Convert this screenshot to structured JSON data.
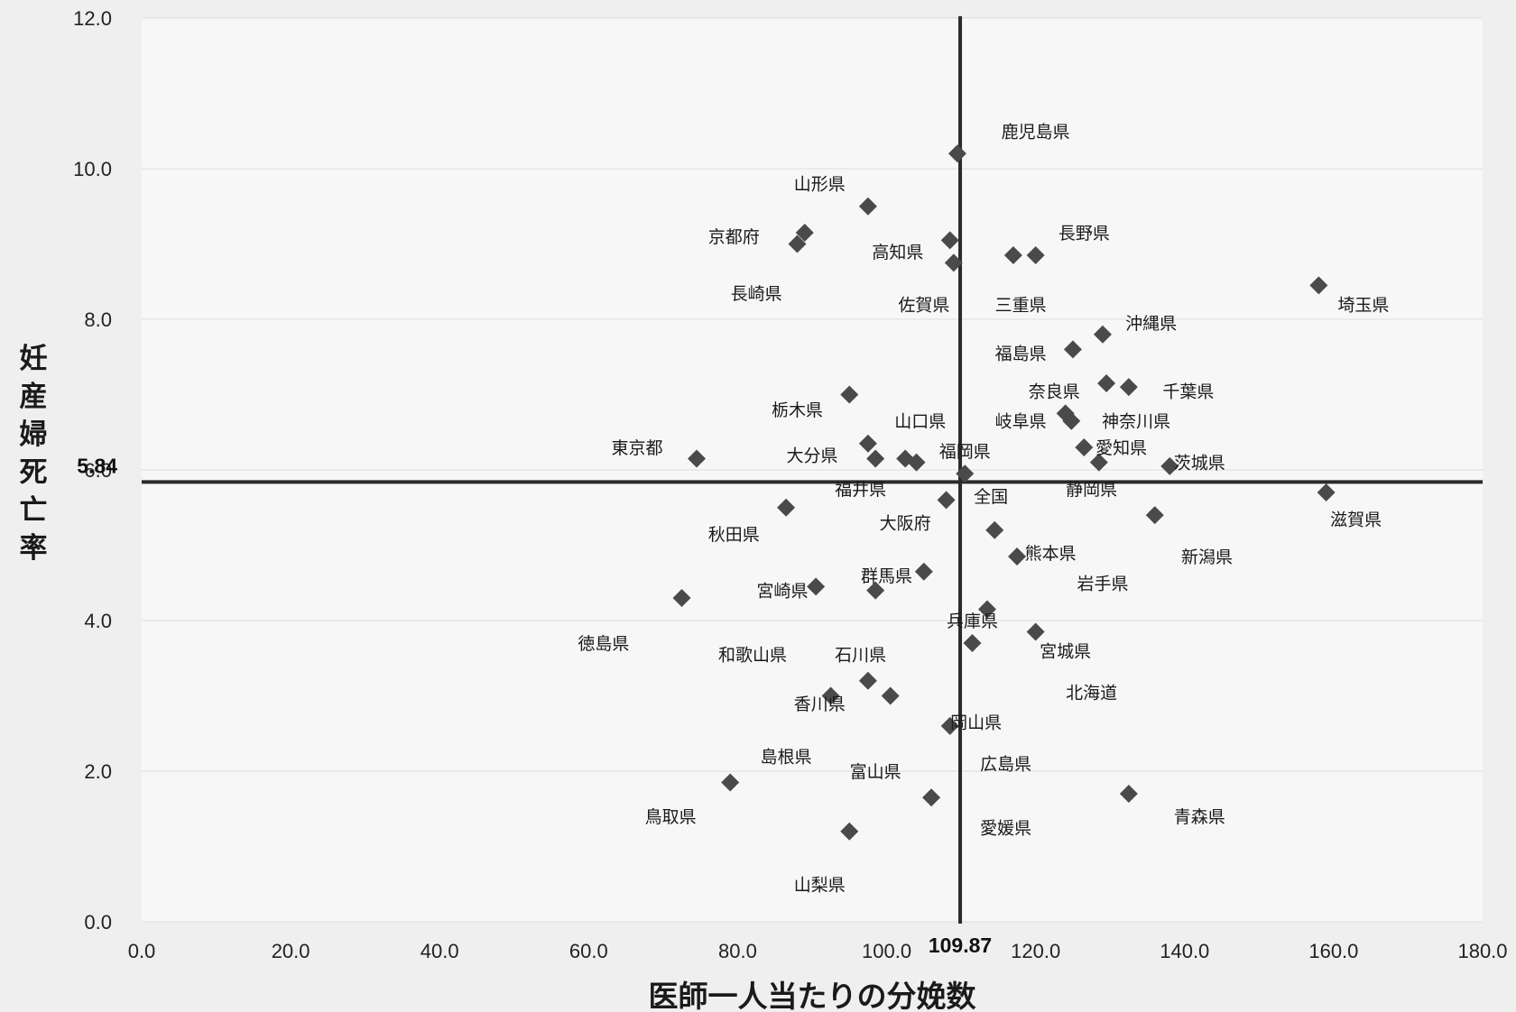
{
  "chart_data": {
    "type": "scatter",
    "title": "",
    "xlabel": "医師一人当たりの分娩数",
    "ylabel": "妊産婦死亡率",
    "xlim": [
      0,
      180
    ],
    "ylim": [
      0,
      12
    ],
    "xticks": [
      "0.0",
      "20.0",
      "40.0",
      "60.0",
      "80.0",
      "100.0",
      "120.0",
      "140.0",
      "160.0",
      "180.0"
    ],
    "yticks": [
      "0.0",
      "2.0",
      "4.0",
      "6.0",
      "8.0",
      "10.0",
      "12.0"
    ],
    "reference_lines": {
      "x": 109.87,
      "y": 5.84,
      "x_label": "109.87",
      "y_label": "5.84"
    },
    "grid": "horizontal",
    "marker": "diamond",
    "colors": {
      "marker": "#4a4a4a",
      "background": "#f7f7f7",
      "reference": "#2a2a2a",
      "grid": "#dcdcdc"
    },
    "points": [
      {
        "name": "鹿児島県",
        "x": 109.5,
        "y": 10.2
      },
      {
        "name": "山形県",
        "x": 97.5,
        "y": 9.5
      },
      {
        "name": "京都府",
        "x": 89,
        "y": 9.15
      },
      {
        "name": "長崎県",
        "x": 88,
        "y": 9.0
      },
      {
        "name": "高知県",
        "x": 108.5,
        "y": 9.05
      },
      {
        "name": "佐賀県",
        "x": 109,
        "y": 8.75
      },
      {
        "name": "長野県",
        "x": 120,
        "y": 8.85
      },
      {
        "name": "三重県",
        "x": 117,
        "y": 8.85
      },
      {
        "name": "埼玉県",
        "x": 158,
        "y": 8.45
      },
      {
        "name": "沖縄県",
        "x": 129,
        "y": 7.8
      },
      {
        "name": "福島県",
        "x": 125,
        "y": 7.6
      },
      {
        "name": "奈良県",
        "x": 129.5,
        "y": 7.15
      },
      {
        "name": "千葉県",
        "x": 132.5,
        "y": 7.1
      },
      {
        "name": "栃木県",
        "x": 95,
        "y": 7.0
      },
      {
        "name": "岐阜県",
        "x": 124,
        "y": 6.75
      },
      {
        "name": "神奈川県",
        "x": 124.8,
        "y": 6.65
      },
      {
        "name": "山口県",
        "x": 97.5,
        "y": 6.35
      },
      {
        "name": "愛知県",
        "x": 126.5,
        "y": 6.3
      },
      {
        "name": "東京都",
        "x": 74.5,
        "y": 6.15
      },
      {
        "name": "大分県",
        "x": 98.5,
        "y": 6.15
      },
      {
        "name": "福岡県",
        "x": 102.5,
        "y": 6.15
      },
      {
        "name": "長崎県",
        "x": 104,
        "y": 6.1
      },
      {
        "name": "静岡県",
        "x": 128.5,
        "y": 6.1
      },
      {
        "name": "茨城県",
        "x": 138,
        "y": 6.05
      },
      {
        "name": "全国",
        "x": 110.5,
        "y": 5.95
      },
      {
        "name": "滋賀県",
        "x": 159,
        "y": 5.7
      },
      {
        "name": "福井県",
        "x": 108,
        "y": 5.6
      },
      {
        "name": "秋田県",
        "x": 86.5,
        "y": 5.5
      },
      {
        "name": "新潟県",
        "x": 136,
        "y": 5.4
      },
      {
        "name": "大阪府",
        "x": 114.5,
        "y": 5.2
      },
      {
        "name": "熊本県",
        "x": 117.5,
        "y": 4.85
      },
      {
        "name": "群馬県",
        "x": 105,
        "y": 4.65
      },
      {
        "name": "宮崎県",
        "x": 90.5,
        "y": 4.45
      },
      {
        "name": "石川県",
        "x": 98.5,
        "y": 4.4
      },
      {
        "name": "徳島県",
        "x": 72.5,
        "y": 4.3
      },
      {
        "name": "兵庫県",
        "x": 113.5,
        "y": 4.15
      },
      {
        "name": "宮城県",
        "x": 120,
        "y": 3.85
      },
      {
        "name": "北海道",
        "x": 111.5,
        "y": 3.7
      },
      {
        "name": "香川県",
        "x": 97.5,
        "y": 3.2
      },
      {
        "name": "岡山県",
        "x": 100.5,
        "y": 3.0
      },
      {
        "name": "和歌山県",
        "x": 92.5,
        "y": 3.0
      },
      {
        "name": "広島県",
        "x": 108.5,
        "y": 2.6
      },
      {
        "name": "鳥取県",
        "x": 79,
        "y": 1.85
      },
      {
        "name": "愛媛県",
        "x": 106,
        "y": 1.65
      },
      {
        "name": "青森県",
        "x": 132.5,
        "y": 1.7
      },
      {
        "name": "山梨県",
        "x": 95,
        "y": 1.2
      }
    ],
    "labels": [
      {
        "text": "鹿児島県",
        "x": 120,
        "y": 10.5
      },
      {
        "text": "山形県",
        "x": 91,
        "y": 9.8
      },
      {
        "text": "京都府",
        "x": 79.5,
        "y": 9.1
      },
      {
        "text": "長崎県",
        "x": 82.5,
        "y": 8.35
      },
      {
        "text": "高知県",
        "x": 101.5,
        "y": 8.9
      },
      {
        "text": "長野県",
        "x": 126.5,
        "y": 9.15
      },
      {
        "text": "佐賀県",
        "x": 105,
        "y": 8.2
      },
      {
        "text": "三重県",
        "x": 118,
        "y": 8.2
      },
      {
        "text": "埼玉県",
        "x": 164,
        "y": 8.2
      },
      {
        "text": "沖縄県",
        "x": 135.5,
        "y": 7.95
      },
      {
        "text": "福島県",
        "x": 118,
        "y": 7.55
      },
      {
        "text": "奈良県",
        "x": 122.5,
        "y": 7.05
      },
      {
        "text": "千葉県",
        "x": 140.5,
        "y": 7.05
      },
      {
        "text": "栃木県",
        "x": 88,
        "y": 6.8
      },
      {
        "text": "山口県",
        "x": 104.5,
        "y": 6.65
      },
      {
        "text": "岐阜県",
        "x": 118,
        "y": 6.65
      },
      {
        "text": "神奈川県",
        "x": 133.5,
        "y": 6.65
      },
      {
        "text": "東京都",
        "x": 66.5,
        "y": 6.3
      },
      {
        "text": "福岡県",
        "x": 110.5,
        "y": 6.25
      },
      {
        "text": "大分県",
        "x": 90,
        "y": 6.2
      },
      {
        "text": "愛知県",
        "x": 131.5,
        "y": 6.3
      },
      {
        "text": "茨城県",
        "x": 142,
        "y": 6.1
      },
      {
        "text": "福井県",
        "x": 96.5,
        "y": 5.75
      },
      {
        "text": "静岡県",
        "x": 127.5,
        "y": 5.75
      },
      {
        "text": "全国",
        "x": 114,
        "y": 5.65
      },
      {
        "text": "滋賀県",
        "x": 163,
        "y": 5.35
      },
      {
        "text": "大阪府",
        "x": 102.5,
        "y": 5.3
      },
      {
        "text": "秋田県",
        "x": 79.5,
        "y": 5.15
      },
      {
        "text": "熊本県",
        "x": 122,
        "y": 4.9
      },
      {
        "text": "新潟県",
        "x": 143,
        "y": 4.85
      },
      {
        "text": "群馬県",
        "x": 100,
        "y": 4.6
      },
      {
        "text": "岩手県",
        "x": 129,
        "y": 4.5
      },
      {
        "text": "宮崎県",
        "x": 86,
        "y": 4.4
      },
      {
        "text": "兵庫県",
        "x": 111.5,
        "y": 4.0
      },
      {
        "text": "徳島県",
        "x": 62,
        "y": 3.7
      },
      {
        "text": "宮城県",
        "x": 124,
        "y": 3.6
      },
      {
        "text": "和歌山県",
        "x": 82,
        "y": 3.55
      },
      {
        "text": "石川県",
        "x": 96.5,
        "y": 3.55
      },
      {
        "text": "北海道",
        "x": 127.5,
        "y": 3.05
      },
      {
        "text": "香川県",
        "x": 91,
        "y": 2.9
      },
      {
        "text": "岡山県",
        "x": 112,
        "y": 2.65
      },
      {
        "text": "島根県",
        "x": 86.5,
        "y": 2.2
      },
      {
        "text": "広島県",
        "x": 116,
        "y": 2.1
      },
      {
        "text": "富山県",
        "x": 98.5,
        "y": 2.0
      },
      {
        "text": "鳥取県",
        "x": 71,
        "y": 1.4
      },
      {
        "text": "愛媛県",
        "x": 116,
        "y": 1.25
      },
      {
        "text": "青森県",
        "x": 142,
        "y": 1.4
      },
      {
        "text": "山梨県",
        "x": 91,
        "y": 0.5
      }
    ]
  }
}
